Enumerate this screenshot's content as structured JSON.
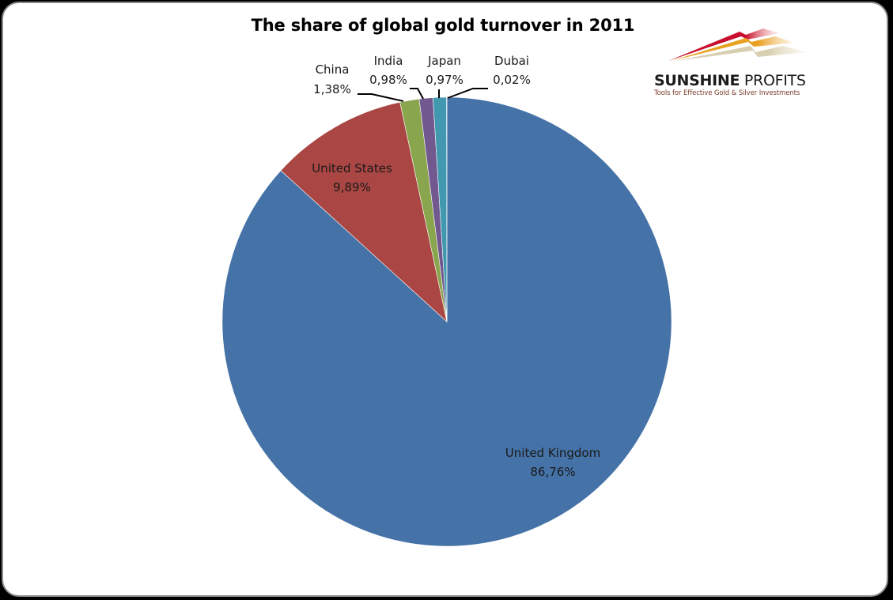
{
  "chart_data": {
    "type": "pie",
    "title": "The share of global gold turnover in 2011",
    "categories": [
      "United Kingdom",
      "United States",
      "China",
      "India",
      "Japan",
      "Dubai"
    ],
    "values": [
      86.76,
      9.89,
      1.38,
      0.98,
      0.97,
      0.02
    ],
    "value_labels": [
      "86,76%",
      "9,89%",
      "1,38%",
      "0,98%",
      "0,97%",
      "0,02%"
    ],
    "colors": [
      "#4572a7",
      "#aa4643",
      "#89a54e",
      "#71588f",
      "#4198af",
      "#db843d"
    ],
    "start_angle": "12 o'clock",
    "direction": "clockwise",
    "legend": "none (data labels with leader lines)"
  },
  "logo": {
    "name_bold": "SUNSHINE",
    "name_regular": " PROFITS",
    "tagline": "Tools for Effective Gold & Silver Investments"
  }
}
